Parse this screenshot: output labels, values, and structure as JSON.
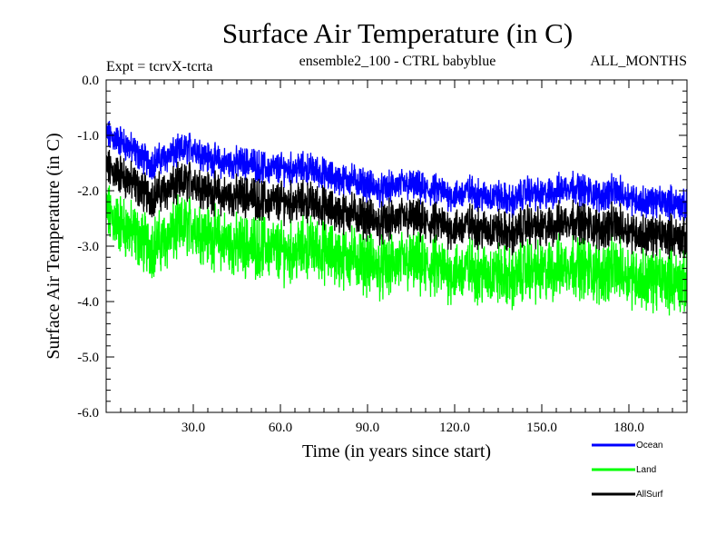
{
  "chart_data": {
    "type": "line",
    "title": "Surface Air Temperature (in C)",
    "subtitle_left": "Expt = tcrvX-tcrta",
    "subtitle_center": "ensemble2_100 - CTRL babyblue",
    "subtitle_right": "ALL_MONTHS",
    "xlabel": "Time (in years since start)",
    "ylabel": "Surface Air Temperature (in C)",
    "xlim": [
      0,
      200
    ],
    "ylim": [
      -6.0,
      0.0
    ],
    "x_ticks": [
      30,
      60,
      90,
      120,
      150,
      180
    ],
    "x_tick_labels": [
      "30.0",
      "60.0",
      "90.0",
      "120.0",
      "150.0",
      "180.0"
    ],
    "y_ticks": [
      0,
      -1,
      -2,
      -3,
      -4,
      -5,
      -6
    ],
    "y_tick_labels": [
      "0.0",
      "-1.0",
      "-2.0",
      "-3.0",
      "-4.0",
      "-5.0",
      "-6.0"
    ],
    "legend_placement": "bottom-right",
    "x": [
      0,
      5,
      10,
      15,
      20,
      25,
      30,
      35,
      40,
      45,
      50,
      55,
      60,
      65,
      70,
      75,
      80,
      85,
      90,
      95,
      100,
      105,
      110,
      115,
      120,
      125,
      130,
      135,
      140,
      145,
      150,
      155,
      160,
      165,
      170,
      175,
      180,
      185,
      190,
      195,
      200
    ],
    "series": [
      {
        "name": "Ocean",
        "color": "#0000ff",
        "values": [
          -1.0,
          -1.1,
          -1.3,
          -1.5,
          -1.4,
          -1.3,
          -1.2,
          -1.4,
          -1.5,
          -1.5,
          -1.5,
          -1.6,
          -1.6,
          -1.6,
          -1.6,
          -1.7,
          -1.8,
          -1.8,
          -1.9,
          -2.0,
          -1.9,
          -1.9,
          -2.0,
          -2.0,
          -2.1,
          -2.0,
          -2.1,
          -2.1,
          -2.2,
          -2.0,
          -2.1,
          -2.0,
          -1.9,
          -2.0,
          -2.1,
          -2.0,
          -2.1,
          -2.2,
          -2.2,
          -2.2,
          -2.3
        ]
      },
      {
        "name": "Land",
        "color": "#00ff00",
        "values": [
          -2.4,
          -2.6,
          -2.8,
          -3.0,
          -2.9,
          -2.7,
          -2.6,
          -2.8,
          -2.9,
          -3.0,
          -3.0,
          -3.0,
          -3.1,
          -3.1,
          -3.0,
          -3.1,
          -3.2,
          -3.2,
          -3.3,
          -3.4,
          -3.3,
          -3.3,
          -3.4,
          -3.4,
          -3.5,
          -3.4,
          -3.5,
          -3.5,
          -3.6,
          -3.4,
          -3.5,
          -3.4,
          -3.3,
          -3.4,
          -3.5,
          -3.4,
          -3.5,
          -3.6,
          -3.6,
          -3.6,
          -3.7
        ]
      },
      {
        "name": "AllSurf",
        "color": "#000000",
        "values": [
          -1.6,
          -1.7,
          -1.9,
          -2.1,
          -2.0,
          -1.9,
          -1.8,
          -2.0,
          -2.1,
          -2.1,
          -2.1,
          -2.2,
          -2.2,
          -2.2,
          -2.2,
          -2.3,
          -2.4,
          -2.4,
          -2.5,
          -2.6,
          -2.5,
          -2.5,
          -2.6,
          -2.6,
          -2.7,
          -2.6,
          -2.7,
          -2.7,
          -2.8,
          -2.6,
          -2.7,
          -2.6,
          -2.5,
          -2.6,
          -2.7,
          -2.6,
          -2.7,
          -2.8,
          -2.8,
          -2.8,
          -2.9
        ]
      }
    ]
  }
}
